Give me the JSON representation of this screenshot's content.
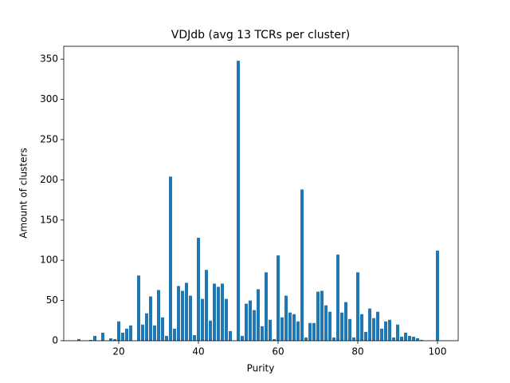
{
  "chart_data": {
    "type": "bar",
    "title": "VDJdb (avg 13 TCRs per cluster)",
    "x_label": "Purity",
    "y_label": "Amount of clusters",
    "color": "#1f77b4",
    "grid": false,
    "x": [
      10,
      13,
      14,
      16,
      18,
      19,
      20,
      21,
      22,
      23,
      25,
      26,
      27,
      28,
      29,
      30,
      31,
      32,
      33,
      34,
      35,
      36,
      37,
      38,
      39,
      40,
      41,
      42,
      43,
      44,
      45,
      46,
      47,
      48,
      50,
      51,
      52,
      53,
      54,
      55,
      56,
      57,
      58,
      59,
      60,
      61,
      62,
      63,
      64,
      65,
      66,
      67,
      68,
      69,
      70,
      71,
      72,
      73,
      74,
      75,
      76,
      77,
      78,
      79,
      80,
      81,
      82,
      83,
      84,
      85,
      86,
      87,
      88,
      89,
      90,
      91,
      92,
      93,
      94,
      95,
      96,
      100
    ],
    "values": [
      2,
      1,
      6,
      10,
      3,
      2,
      24,
      10,
      15,
      19,
      81,
      20,
      34,
      55,
      19,
      63,
      29,
      6,
      204,
      15,
      68,
      62,
      72,
      56,
      7,
      128,
      52,
      88,
      25,
      71,
      67,
      71,
      52,
      12,
      348,
      6,
      46,
      50,
      38,
      64,
      18,
      85,
      26,
      2,
      106,
      29,
      56,
      35,
      33,
      24,
      188,
      4,
      22,
      22,
      61,
      62,
      44,
      36,
      4,
      107,
      35,
      48,
      27,
      4,
      85,
      33,
      11,
      40,
      28,
      36,
      15,
      24,
      26,
      4,
      20,
      5,
      10,
      6,
      5,
      3,
      1,
      112
    ],
    "xlim": [
      6.2,
      105.2
    ],
    "ylim": [
      0,
      366
    ],
    "xticks": [
      20,
      40,
      60,
      80,
      100
    ],
    "yticks": [
      0,
      50,
      100,
      150,
      200,
      250,
      300,
      350
    ]
  }
}
